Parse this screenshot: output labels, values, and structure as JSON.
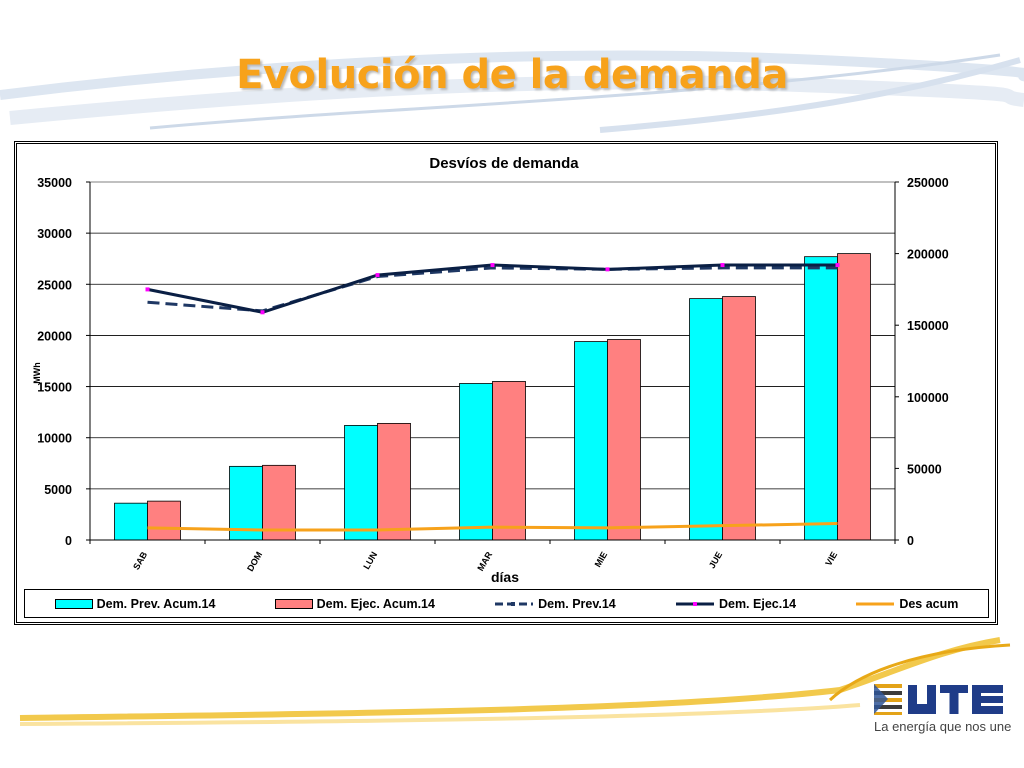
{
  "slide": {
    "title": "Evolución de la demanda",
    "logo_text": "La energía que nos une",
    "logo_name": "ute-logo",
    "accent_color": "#F7A21B"
  },
  "chart_data": {
    "type": "bar",
    "title": "Desvíos de demanda",
    "xlabel": "días",
    "ylabel": "MWh",
    "y2label": "",
    "categories": [
      "SAB",
      "DOM",
      "LUN",
      "MAR",
      "MIE",
      "JUE",
      "VIE"
    ],
    "ylim": [
      0,
      35000
    ],
    "y2lim": [
      0,
      250000
    ],
    "yticks": [
      0,
      5000,
      10000,
      15000,
      20000,
      25000,
      30000,
      35000
    ],
    "y2ticks": [
      0,
      50000,
      100000,
      150000,
      200000,
      250000
    ],
    "grid": true,
    "legend_position": "bottom",
    "series": [
      {
        "name": "Dem. Prev. Acum.14",
        "type": "bar",
        "axis": "left",
        "color": "#00FFFF",
        "values": [
          3600,
          7200,
          11200,
          15300,
          19400,
          23600,
          27700
        ]
      },
      {
        "name": "Dem. Ejec. Acum.14",
        "type": "bar",
        "axis": "left",
        "color": "#FF8080",
        "values": [
          3800,
          7300,
          11400,
          15500,
          19600,
          23800,
          28000
        ]
      },
      {
        "name": "Dem. Prev.14",
        "type": "line",
        "axis": "right",
        "color": "#1F3864",
        "dash": true,
        "values": [
          166000,
          160000,
          184000,
          190000,
          189000,
          190000,
          190000
        ]
      },
      {
        "name": "Dem. Ejec.14",
        "type": "line",
        "axis": "right",
        "color": "#0A1F44",
        "marker_color": "#FF00FF",
        "values": [
          175000,
          159000,
          185000,
          192000,
          189000,
          192000,
          192000
        ]
      },
      {
        "name": "Des acum",
        "type": "line",
        "axis": "right",
        "color": "#F7A21B",
        "values": [
          8500,
          7000,
          7000,
          9000,
          8500,
          10000,
          11500
        ]
      }
    ]
  }
}
